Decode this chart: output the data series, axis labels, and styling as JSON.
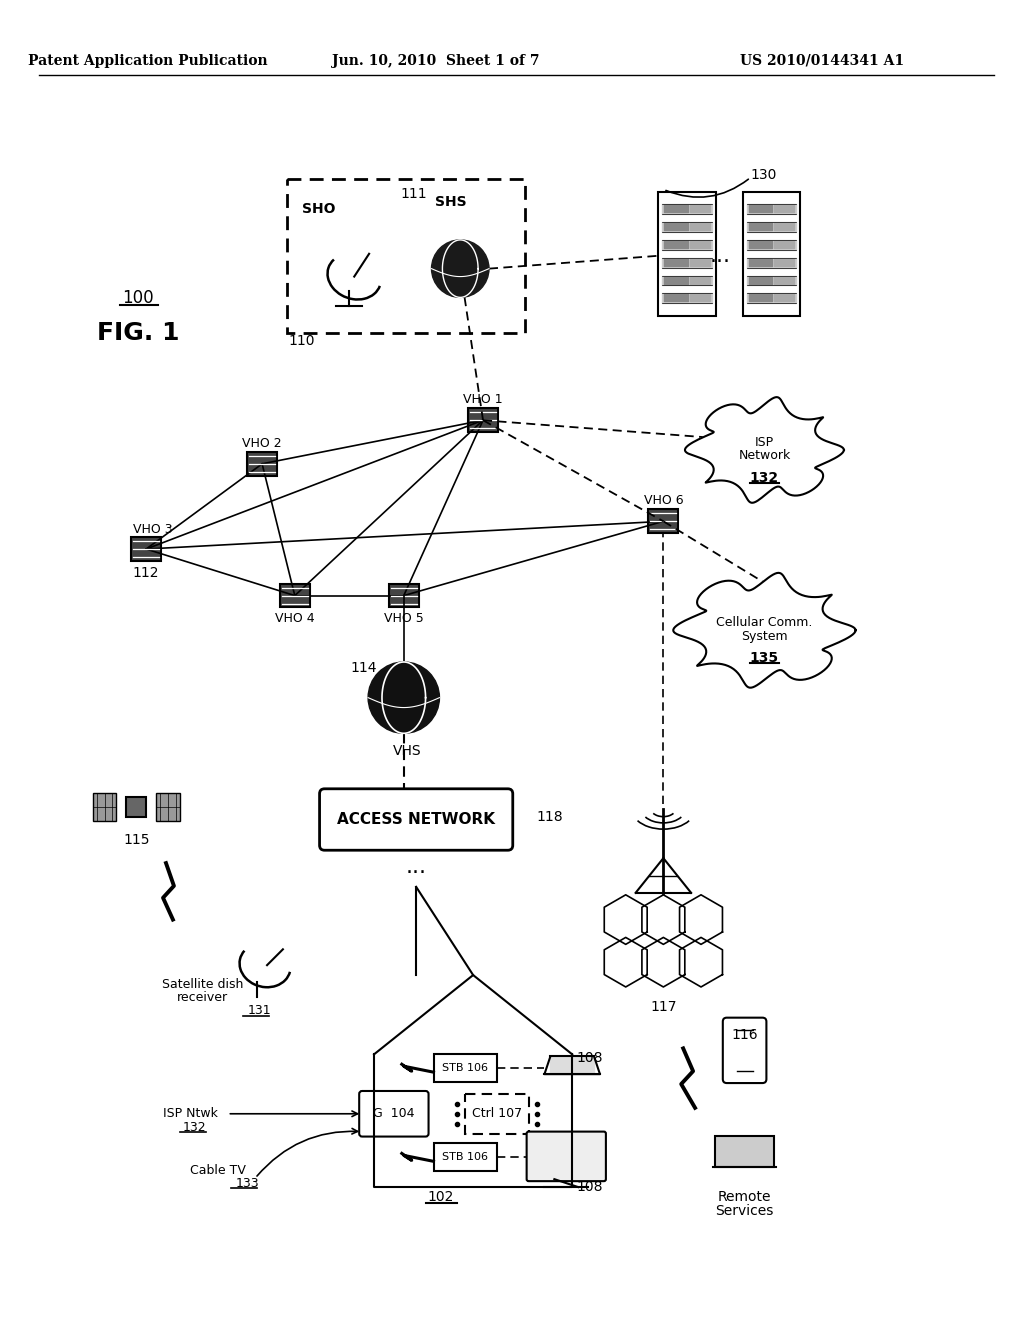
{
  "title_left": "Patent Application Publication",
  "title_mid": "Jun. 10, 2010  Sheet 1 of 7",
  "title_right": "US 2010/0144341 A1",
  "fig_label": "FIG. 1",
  "fig_number": "100",
  "background": "#ffffff",
  "text_color": "#000000"
}
